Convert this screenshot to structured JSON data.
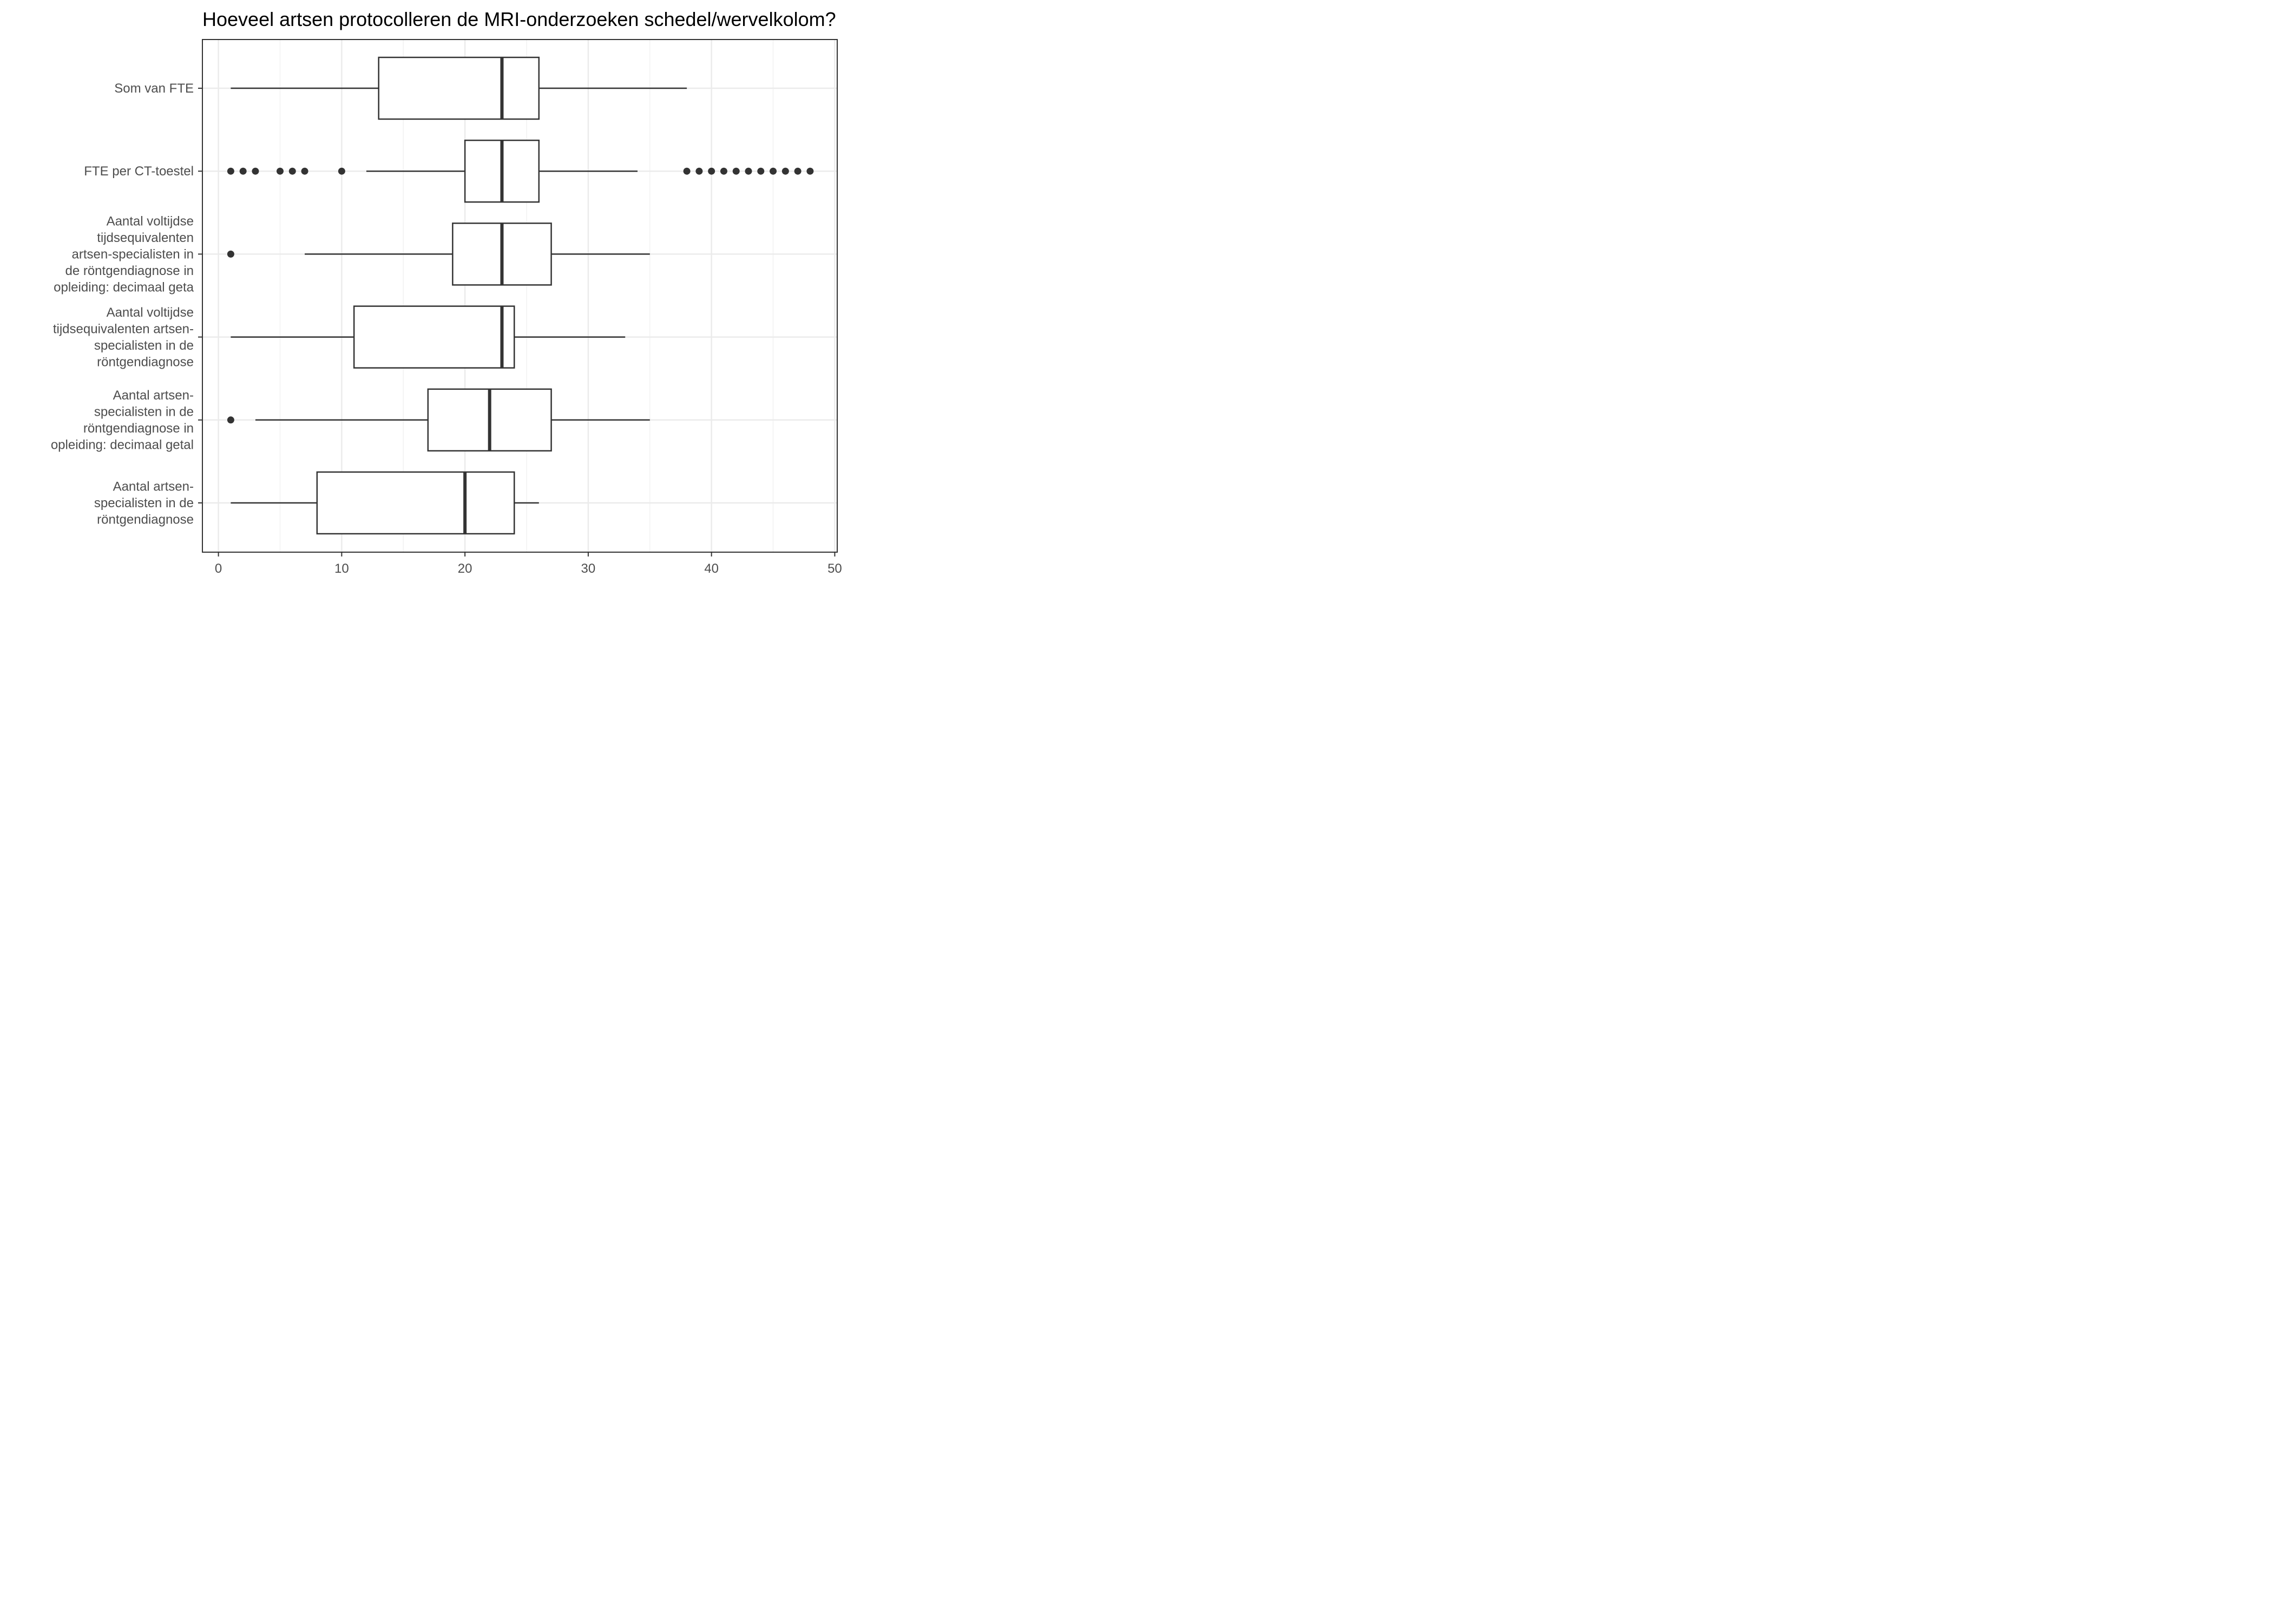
{
  "chart_data": {
    "type": "boxplot",
    "orientation": "horizontal",
    "title": "Hoeveel artsen protocolleren de MRI-onderzoeken schedel/wervelkolom?",
    "xlabel": "",
    "ylabel": "",
    "xlim": [
      -1.3,
      50.2
    ],
    "xticks": [
      0,
      10,
      20,
      30,
      40,
      50
    ],
    "xtick_labels": [
      "0",
      "10",
      "20",
      "30",
      "40",
      "50"
    ],
    "grid": true,
    "legend": "none",
    "categories": [
      {
        "label": "Som van FTE",
        "min": 1,
        "q1": 13,
        "median": 23,
        "q3": 26,
        "max": 38,
        "outliers": []
      },
      {
        "label": "FTE per CT-toestel",
        "min": 12,
        "q1": 20,
        "median": 23,
        "q3": 26,
        "max": 34,
        "outliers": [
          1,
          2,
          3,
          5,
          6,
          7,
          10,
          38,
          39,
          40,
          41,
          42,
          43,
          44,
          45,
          46,
          47,
          48
        ]
      },
      {
        "label": "Aantal voltijdse tijdsequivalenten artsen-specialisten in de röntgendiagnose in opleiding: decimaal geta",
        "label_lines": [
          "Aantal voltijdse",
          "tijdsequivalenten",
          "artsen-specialisten in",
          "de röntgendiagnose in",
          "opleiding: decimaal geta"
        ],
        "min": 7,
        "q1": 19,
        "median": 23,
        "q3": 27,
        "max": 35,
        "outliers": [
          1
        ]
      },
      {
        "label": "Aantal voltijdse tijdsequivalenten artsen-specialisten in de röntgendiagnose",
        "label_lines": [
          "Aantal voltijdse",
          "tijdsequivalenten artsen-",
          "specialisten in de",
          "röntgendiagnose"
        ],
        "min": 1,
        "q1": 11,
        "median": 23,
        "q3": 24,
        "max": 33,
        "outliers": []
      },
      {
        "label": "Aantal artsen-specialisten in de röntgendiagnose in opleiding: decimaal getal",
        "label_lines": [
          "Aantal artsen-",
          "specialisten in de",
          "röntgendiagnose in",
          "opleiding: decimaal getal"
        ],
        "min": 3,
        "q1": 17,
        "median": 22,
        "q3": 27,
        "max": 35,
        "outliers": [
          1
        ]
      },
      {
        "label": "Aantal artsen-specialisten in de röntgendiagnose",
        "label_lines": [
          "Aantal artsen-",
          "specialisten in de",
          "röntgendiagnose"
        ],
        "min": 1,
        "q1": 8,
        "median": 20,
        "q3": 24,
        "max": 26,
        "outliers": []
      }
    ],
    "colors": {
      "box_fill": "#ffffff",
      "box_stroke": "#333333",
      "outlier": "#333333",
      "grid_major": "#ebebeb",
      "grid_minor": "#f2f2f2",
      "panel_border": "#333333",
      "axis_text": "#4d4d4d",
      "title": "#000000"
    }
  }
}
